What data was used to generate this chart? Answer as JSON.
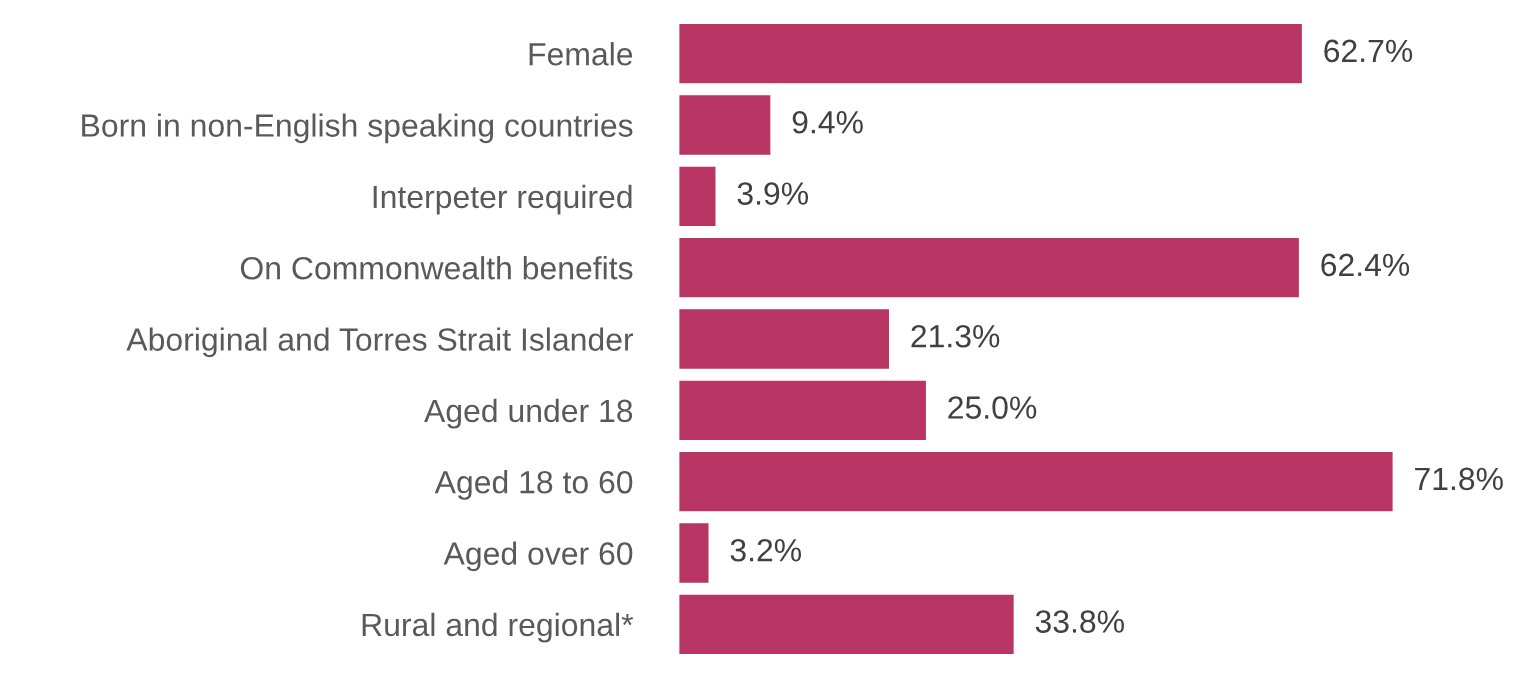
{
  "chart_data": {
    "type": "bar",
    "orientation": "horizontal",
    "categories": [
      "Female",
      "Born in non-English speaking countries",
      "Interpeter required",
      "On Commonwealth benefits",
      "Aboriginal and Torres Strait Islander",
      "Aged under 18",
      "Aged 18 to 60",
      "Aged over 60",
      "Rural and regional*"
    ],
    "values": [
      62.7,
      9.4,
      3.9,
      62.4,
      21.3,
      25.0,
      71.8,
      3.2,
      33.8
    ],
    "color": "#b83564",
    "value_labels": [
      "62.7%",
      "9.4%",
      "3.9%",
      "62.4%",
      "21.3%",
      "25.0%",
      "71.8%",
      "3.2%",
      "33.8%"
    ],
    "grid": false,
    "legend": false
  }
}
